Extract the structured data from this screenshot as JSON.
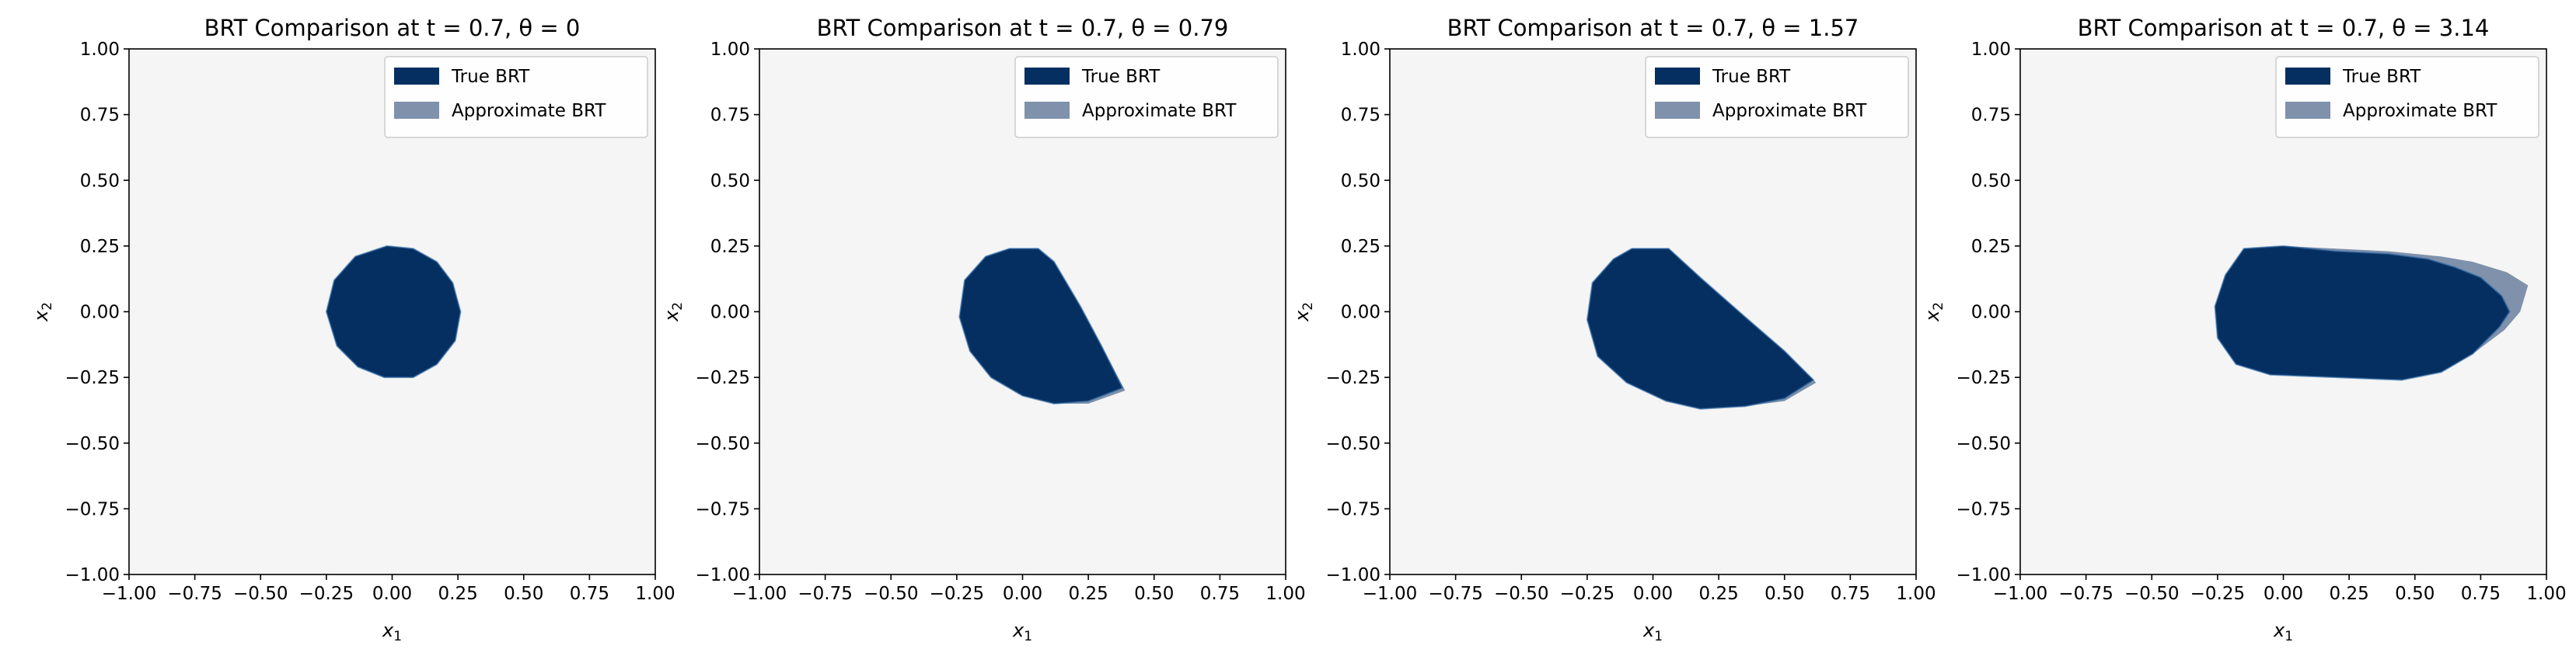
{
  "colors": {
    "plot_background": "#f5f5f5",
    "true_brt": "#052f60",
    "approx_brt": "#7f91ab",
    "axis": "#000000"
  },
  "chart_data": [
    {
      "type": "filled-region",
      "title_prefix": "BRT Comparison at ",
      "title_t": "t = 0.7",
      "title_theta": "θ = 0",
      "xlabel_base": "x",
      "xlabel_sub": "1",
      "ylabel_base": "x",
      "ylabel_sub": "2",
      "xlim": [
        -1,
        1
      ],
      "ylim": [
        -1,
        1
      ],
      "ticks": [
        -1.0,
        -0.75,
        -0.5,
        -0.25,
        0.0,
        0.25,
        0.5,
        0.75,
        1.0
      ],
      "tick_labels": [
        "−1.00",
        "−0.75",
        "−0.50",
        "−0.25",
        "0.00",
        "0.25",
        "0.50",
        "0.75",
        "1.00"
      ],
      "grid": false,
      "legend": {
        "placement": "upper-right",
        "entries": [
          "True BRT",
          "Approximate BRT"
        ]
      },
      "series": [
        {
          "name": "Approximate BRT",
          "polygon": [
            [
              -0.02,
              0.25
            ],
            [
              0.08,
              0.24
            ],
            [
              0.17,
              0.19
            ],
            [
              0.23,
              0.11
            ],
            [
              0.26,
              0.0
            ],
            [
              0.24,
              -0.11
            ],
            [
              0.17,
              -0.2
            ],
            [
              0.08,
              -0.25
            ],
            [
              -0.03,
              -0.25
            ],
            [
              -0.13,
              -0.21
            ],
            [
              -0.21,
              -0.13
            ],
            [
              -0.25,
              0.0
            ],
            [
              -0.22,
              0.12
            ],
            [
              -0.14,
              0.21
            ]
          ]
        },
        {
          "name": "True BRT",
          "polygon": [
            [
              -0.02,
              0.25
            ],
            [
              0.08,
              0.24
            ],
            [
              0.17,
              0.19
            ],
            [
              0.23,
              0.11
            ],
            [
              0.26,
              0.0
            ],
            [
              0.24,
              -0.11
            ],
            [
              0.17,
              -0.2
            ],
            [
              0.08,
              -0.25
            ],
            [
              -0.03,
              -0.25
            ],
            [
              -0.13,
              -0.21
            ],
            [
              -0.21,
              -0.13
            ],
            [
              -0.25,
              0.0
            ],
            [
              -0.22,
              0.12
            ],
            [
              -0.14,
              0.21
            ]
          ]
        }
      ]
    },
    {
      "type": "filled-region",
      "title_prefix": "BRT Comparison at ",
      "title_t": "t = 0.7",
      "title_theta": "θ = 0.79",
      "xlabel_base": "x",
      "xlabel_sub": "1",
      "ylabel_base": "x",
      "ylabel_sub": "2",
      "xlim": [
        -1,
        1
      ],
      "ylim": [
        -1,
        1
      ],
      "ticks": [
        -1.0,
        -0.75,
        -0.5,
        -0.25,
        0.0,
        0.25,
        0.5,
        0.75,
        1.0
      ],
      "tick_labels": [
        "−1.00",
        "−0.75",
        "−0.50",
        "−0.25",
        "0.00",
        "0.25",
        "0.50",
        "0.75",
        "1.00"
      ],
      "grid": false,
      "legend": {
        "placement": "upper-right",
        "entries": [
          "True BRT",
          "Approximate BRT"
        ]
      },
      "series": [
        {
          "name": "Approximate BRT",
          "polygon": [
            [
              -0.05,
              0.24
            ],
            [
              0.06,
              0.24
            ],
            [
              0.12,
              0.19
            ],
            [
              0.22,
              0.02
            ],
            [
              0.3,
              -0.13
            ],
            [
              0.39,
              -0.3
            ],
            [
              0.25,
              -0.35
            ],
            [
              0.12,
              -0.35
            ],
            [
              0.0,
              -0.32
            ],
            [
              -0.12,
              -0.25
            ],
            [
              -0.2,
              -0.15
            ],
            [
              -0.24,
              -0.02
            ],
            [
              -0.22,
              0.12
            ],
            [
              -0.14,
              0.21
            ]
          ]
        },
        {
          "name": "True BRT",
          "polygon": [
            [
              -0.05,
              0.24
            ],
            [
              0.06,
              0.24
            ],
            [
              0.12,
              0.19
            ],
            [
              0.22,
              0.02
            ],
            [
              0.3,
              -0.13
            ],
            [
              0.38,
              -0.29
            ],
            [
              0.25,
              -0.34
            ],
            [
              0.12,
              -0.35
            ],
            [
              0.0,
              -0.32
            ],
            [
              -0.12,
              -0.25
            ],
            [
              -0.2,
              -0.15
            ],
            [
              -0.24,
              -0.02
            ],
            [
              -0.22,
              0.12
            ],
            [
              -0.14,
              0.21
            ]
          ]
        }
      ]
    },
    {
      "type": "filled-region",
      "title_prefix": "BRT Comparison at ",
      "title_t": "t = 0.7",
      "title_theta": "θ = 1.57",
      "xlabel_base": "x",
      "xlabel_sub": "1",
      "ylabel_base": "x",
      "ylabel_sub": "2",
      "xlim": [
        -1,
        1
      ],
      "ylim": [
        -1,
        1
      ],
      "ticks": [
        -1.0,
        -0.75,
        -0.5,
        -0.25,
        0.0,
        0.25,
        0.5,
        0.75,
        1.0
      ],
      "tick_labels": [
        "−1.00",
        "−0.75",
        "−0.50",
        "−0.25",
        "0.00",
        "0.25",
        "0.50",
        "0.75",
        "1.00"
      ],
      "grid": false,
      "legend": {
        "placement": "upper-right",
        "entries": [
          "True BRT",
          "Approximate BRT"
        ]
      },
      "series": [
        {
          "name": "Approximate BRT",
          "polygon": [
            [
              -0.08,
              0.24
            ],
            [
              0.06,
              0.24
            ],
            [
              0.18,
              0.13
            ],
            [
              0.35,
              -0.02
            ],
            [
              0.5,
              -0.15
            ],
            [
              0.62,
              -0.27
            ],
            [
              0.5,
              -0.34
            ],
            [
              0.35,
              -0.36
            ],
            [
              0.18,
              -0.37
            ],
            [
              0.05,
              -0.34
            ],
            [
              -0.1,
              -0.27
            ],
            [
              -0.21,
              -0.17
            ],
            [
              -0.25,
              -0.03
            ],
            [
              -0.23,
              0.11
            ],
            [
              -0.15,
              0.2
            ]
          ]
        },
        {
          "name": "True BRT",
          "polygon": [
            [
              -0.08,
              0.24
            ],
            [
              0.06,
              0.24
            ],
            [
              0.18,
              0.13
            ],
            [
              0.35,
              -0.02
            ],
            [
              0.5,
              -0.15
            ],
            [
              0.61,
              -0.26
            ],
            [
              0.5,
              -0.33
            ],
            [
              0.35,
              -0.36
            ],
            [
              0.18,
              -0.37
            ],
            [
              0.05,
              -0.34
            ],
            [
              -0.1,
              -0.27
            ],
            [
              -0.21,
              -0.17
            ],
            [
              -0.25,
              -0.03
            ],
            [
              -0.23,
              0.11
            ],
            [
              -0.15,
              0.2
            ]
          ]
        }
      ]
    },
    {
      "type": "filled-region",
      "title_prefix": "BRT Comparison at ",
      "title_t": "t = 0.7",
      "title_theta": "θ = 3.14",
      "xlabel_base": "x",
      "xlabel_sub": "1",
      "ylabel_base": "x",
      "ylabel_sub": "2",
      "xlim": [
        -1,
        1
      ],
      "ylim": [
        -1,
        1
      ],
      "ticks": [
        -1.0,
        -0.75,
        -0.5,
        -0.25,
        0.0,
        0.25,
        0.5,
        0.75,
        1.0
      ],
      "tick_labels": [
        "−1.00",
        "−0.75",
        "−0.50",
        "−0.25",
        "0.00",
        "0.25",
        "0.50",
        "0.75",
        "1.00"
      ],
      "grid": false,
      "legend": {
        "placement": "upper-right",
        "entries": [
          "True BRT",
          "Approximate BRT"
        ]
      },
      "series": [
        {
          "name": "Approximate BRT",
          "polygon": [
            [
              -0.15,
              0.24
            ],
            [
              0.0,
              0.25
            ],
            [
              0.2,
              0.24
            ],
            [
              0.4,
              0.23
            ],
            [
              0.6,
              0.21
            ],
            [
              0.72,
              0.19
            ],
            [
              0.85,
              0.15
            ],
            [
              0.93,
              0.1
            ],
            [
              0.9,
              0.0
            ],
            [
              0.84,
              -0.07
            ],
            [
              0.72,
              -0.16
            ],
            [
              0.6,
              -0.23
            ],
            [
              0.45,
              -0.26
            ],
            [
              0.2,
              -0.25
            ],
            [
              -0.05,
              -0.24
            ],
            [
              -0.18,
              -0.2
            ],
            [
              -0.25,
              -0.1
            ],
            [
              -0.26,
              0.02
            ],
            [
              -0.22,
              0.14
            ]
          ]
        },
        {
          "name": "True BRT",
          "polygon": [
            [
              -0.15,
              0.24
            ],
            [
              0.0,
              0.25
            ],
            [
              0.2,
              0.23
            ],
            [
              0.4,
              0.22
            ],
            [
              0.55,
              0.2
            ],
            [
              0.65,
              0.17
            ],
            [
              0.75,
              0.13
            ],
            [
              0.83,
              0.06
            ],
            [
              0.86,
              0.0
            ],
            [
              0.82,
              -0.06
            ],
            [
              0.72,
              -0.16
            ],
            [
              0.6,
              -0.23
            ],
            [
              0.45,
              -0.26
            ],
            [
              0.2,
              -0.25
            ],
            [
              -0.05,
              -0.24
            ],
            [
              -0.18,
              -0.2
            ],
            [
              -0.25,
              -0.1
            ],
            [
              -0.26,
              0.02
            ],
            [
              -0.22,
              0.14
            ]
          ]
        }
      ]
    }
  ]
}
